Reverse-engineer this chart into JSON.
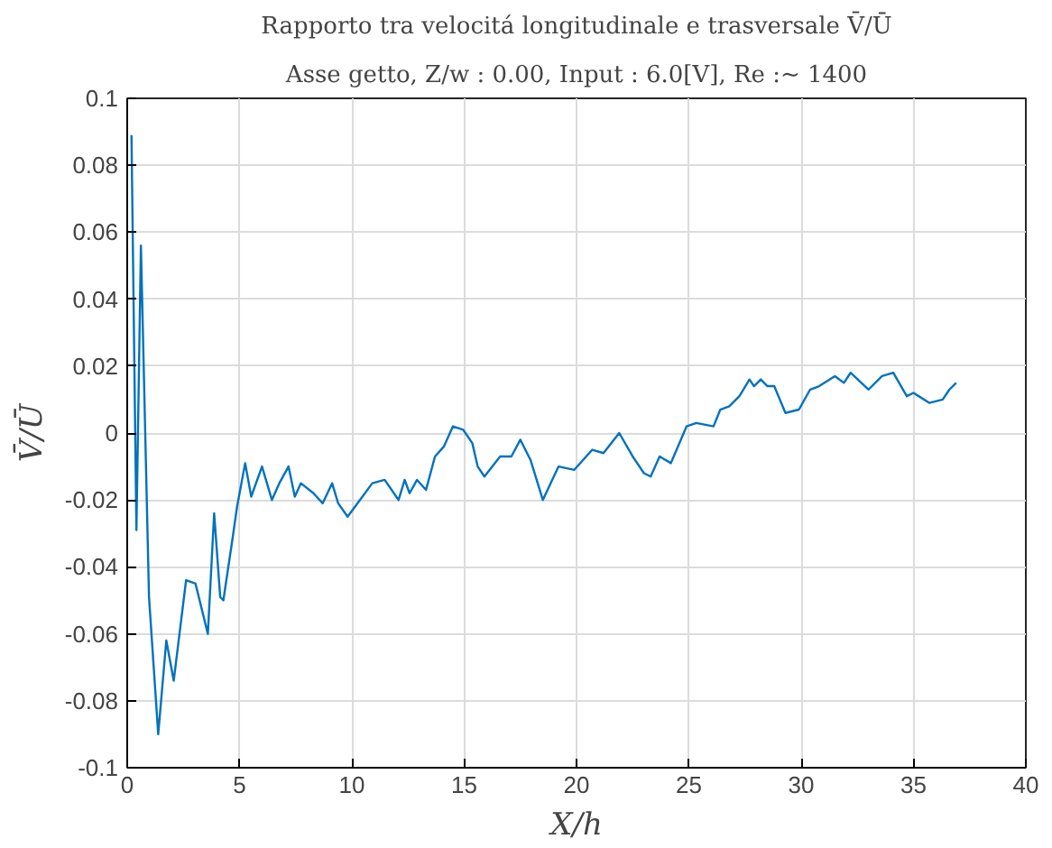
{
  "chart_data": {
    "type": "line",
    "title": "Rapporto tra velocitá longitudinale e trasversale V̄/Ū",
    "subtitle": "Asse getto, Z/w : 0.00, Input : 6.0[V], Re :∼ 1400",
    "xlabel": "X/h",
    "ylabel": "V̄/Ū",
    "x": [
      0.19,
      0.41,
      0.61,
      0.97,
      1.38,
      1.74,
      2.07,
      2.62,
      3.04,
      3.59,
      3.87,
      4.14,
      4.28,
      4.7,
      4.89,
      5.25,
      5.52,
      6.0,
      6.44,
      6.77,
      7.18,
      7.46,
      7.73,
      8.29,
      8.7,
      9.12,
      9.39,
      9.81,
      10.36,
      10.91,
      11.46,
      12.08,
      12.35,
      12.57,
      12.9,
      13.3,
      13.7,
      14.1,
      14.5,
      14.95,
      15.36,
      15.6,
      15.9,
      16.6,
      17.1,
      17.5,
      17.95,
      18.5,
      19.2,
      19.9,
      20.7,
      21.2,
      21.9,
      22.5,
      23.0,
      23.3,
      23.7,
      24.2,
      24.9,
      25.33,
      26.1,
      26.4,
      26.8,
      27.25,
      27.7,
      27.9,
      28.2,
      28.5,
      28.8,
      29.3,
      29.9,
      30.4,
      30.8,
      31.5,
      31.9,
      32.2,
      33.0,
      33.6,
      34.1,
      34.7,
      35.0,
      35.7,
      36.3,
      36.6,
      36.9
    ],
    "series": [
      {
        "color": "#0072bd",
        "values": [
          0.089,
          -0.029,
          0.056,
          -0.049,
          -0.09,
          -0.062,
          -0.074,
          -0.044,
          -0.045,
          -0.06,
          -0.024,
          -0.049,
          -0.05,
          -0.031,
          -0.022,
          -0.009,
          -0.019,
          -0.01,
          -0.02,
          -0.015,
          -0.01,
          -0.019,
          -0.015,
          -0.018,
          -0.021,
          -0.015,
          -0.021,
          -0.025,
          -0.02,
          -0.015,
          -0.014,
          -0.02,
          -0.014,
          -0.018,
          -0.014,
          -0.017,
          -0.007,
          -0.004,
          0.002,
          0.001,
          -0.003,
          -0.01,
          -0.013,
          -0.007,
          -0.007,
          -0.002,
          -0.008,
          -0.02,
          -0.01,
          -0.011,
          -0.005,
          -0.006,
          0.0,
          -0.007,
          -0.012,
          -0.013,
          -0.007,
          -0.009,
          0.002,
          0.003,
          0.002,
          0.007,
          0.008,
          0.011,
          0.016,
          0.014,
          0.016,
          0.014,
          0.014,
          0.006,
          0.007,
          0.013,
          0.014,
          0.017,
          0.015,
          0.018,
          0.013,
          0.017,
          0.018,
          0.011,
          0.012,
          0.009,
          0.01,
          0.013,
          0.015
        ]
      }
    ],
    "xlim": [
      0,
      40
    ],
    "xticks": [
      0,
      5,
      10,
      15,
      20,
      25,
      30,
      35,
      40
    ],
    "ylim": [
      -0.1,
      0.1
    ],
    "yticks": [
      -0.1,
      -0.08,
      -0.06,
      -0.04,
      -0.02,
      0,
      0.02,
      0.04,
      0.06,
      0.08,
      0.1
    ],
    "grid": true,
    "line_style": "solid"
  }
}
